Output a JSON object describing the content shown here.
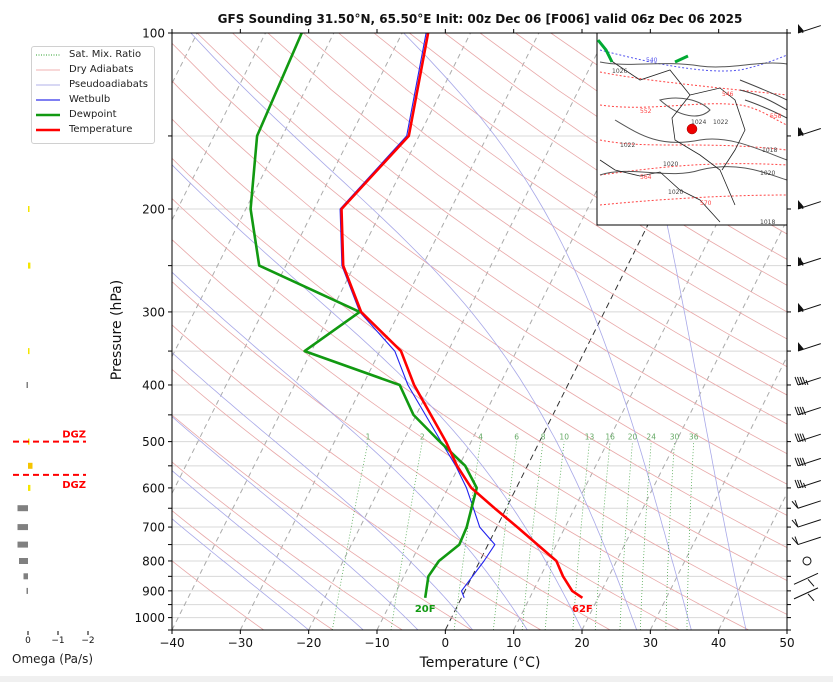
{
  "chart_data": {
    "type": "line",
    "title": "GFS Sounding 31.50°N, 65.50°E Init: 00z Dec 06 [F006] valid 06z Dec 06 2025",
    "xlabel": "Temperature (°C)",
    "ylabel": "Pressure (hPa)",
    "xlim": [
      -40,
      50
    ],
    "ylim": [
      1050,
      100
    ],
    "yscale": "log",
    "skewt": true,
    "x_ticks": [
      "−40",
      "−30",
      "−20",
      "−10",
      "0",
      "10",
      "20",
      "30",
      "40",
      "50"
    ],
    "x_tick_values": [
      -40,
      -30,
      -20,
      -10,
      0,
      10,
      20,
      30,
      40,
      50
    ],
    "y_ticks": [
      "100",
      "200",
      "300",
      "400",
      "500",
      "600",
      "700",
      "800",
      "900",
      "1000"
    ],
    "y_tick_values": [
      100,
      200,
      300,
      400,
      500,
      600,
      700,
      800,
      900,
      1000
    ],
    "legend": {
      "position": "upper-left",
      "entries": [
        "Sat. Mix. Ratio",
        "Dry Adiabats",
        "Pseudoadiabats",
        "Wetbulb",
        "Dewpoint",
        "Temperature"
      ]
    },
    "series": [
      {
        "name": "Temperature",
        "color": "#ff0000",
        "pressure": [
          100,
          150,
          200,
          250,
          300,
          350,
          400,
          500,
          550,
          600,
          650,
          700,
          800,
          850,
          900,
          925
        ],
        "values": [
          -46.2,
          -41.5,
          -46.0,
          -41.6,
          -35.6,
          -26.9,
          -22.5,
          -13.7,
          -10.3,
          -6.6,
          -1.7,
          3.0,
          11.2,
          13.3,
          15.7,
          17.7
        ]
      },
      {
        "name": "Dewpoint",
        "color": "#119911",
        "pressure": [
          100,
          150,
          200,
          250,
          300,
          350,
          400,
          450,
          500,
          550,
          600,
          700,
          750,
          800,
          850,
          925
        ],
        "values": [
          -64.7,
          -63.7,
          -59.3,
          -53.9,
          -35.8,
          -41.0,
          -24.6,
          -20.4,
          -14.6,
          -9.1,
          -5.8,
          -4.4,
          -4.2,
          -6.0,
          -6.4,
          -5.3
        ]
      },
      {
        "name": "Wetbulb",
        "color": "#2222ee",
        "pressure": [
          100,
          150,
          200,
          250,
          300,
          350,
          400,
          500,
          550,
          600,
          650,
          700,
          750,
          800,
          900,
          925
        ],
        "values": [
          -46.5,
          -41.8,
          -46.2,
          -41.8,
          -35.8,
          -27.8,
          -23.4,
          -14.4,
          -10.5,
          -7.3,
          -4.8,
          -2.5,
          1.0,
          0.6,
          -0.5,
          0.4
        ]
      }
    ],
    "annotations": {
      "surface_dewpoint_label": "20F",
      "surface_temperature_label": "62F",
      "mixing_ratio_labels": [
        "1",
        "2",
        "4",
        "6",
        "8",
        "10",
        "13",
        "16",
        "20",
        "24",
        "30",
        "36"
      ],
      "mixing_ratio_values": [
        1,
        2,
        4,
        6,
        8,
        10,
        13,
        16,
        20,
        24,
        30,
        36
      ]
    },
    "wind_barbs": {
      "pressure": [
        100,
        150,
        200,
        250,
        300,
        350,
        400,
        450,
        500,
        550,
        600,
        650,
        700,
        750,
        800,
        850,
        900
      ],
      "speed_kt": [
        55,
        60,
        55,
        60,
        55,
        50,
        45,
        40,
        40,
        40,
        35,
        10,
        10,
        10,
        0,
        5,
        5
      ],
      "direction_deg": [
        250,
        250,
        250,
        250,
        250,
        250,
        250,
        250,
        250,
        250,
        250,
        240,
        240,
        240,
        0,
        60,
        60
      ]
    },
    "omega_panel": {
      "xlabel": "Omega (Pa/s)",
      "x_ticks": [
        "0",
        "−1",
        "−2"
      ],
      "x_tick_values": [
        0,
        -1,
        -2
      ],
      "pressure": [
        200,
        250,
        350,
        400,
        500,
        550,
        600,
        650,
        700,
        750,
        800,
        850,
        900
      ],
      "values": [
        -0.02,
        -0.08,
        -0.02,
        0.02,
        -0.02,
        -0.15,
        -0.08,
        0.35,
        0.35,
        0.35,
        0.3,
        0.15,
        0.02
      ],
      "dgz": {
        "label": "DGZ",
        "top_pressure": 500,
        "bottom_pressure": 570
      }
    }
  },
  "legend_colors": {
    "sat_mix": "#2ca02c",
    "dry": "#e8a0a0",
    "pseudo": "#9090dd",
    "wetbulb": "#2222ee",
    "dewpoint": "#119911",
    "temperature": "#ff0000"
  },
  "inset_map": {
    "contour_labels": [
      "1026",
      "1024",
      "1022",
      "1022",
      "1020",
      "1020",
      "1020",
      "1018",
      "1018",
      "552",
      "558",
      "564",
      "570",
      "540",
      "546"
    ]
  }
}
